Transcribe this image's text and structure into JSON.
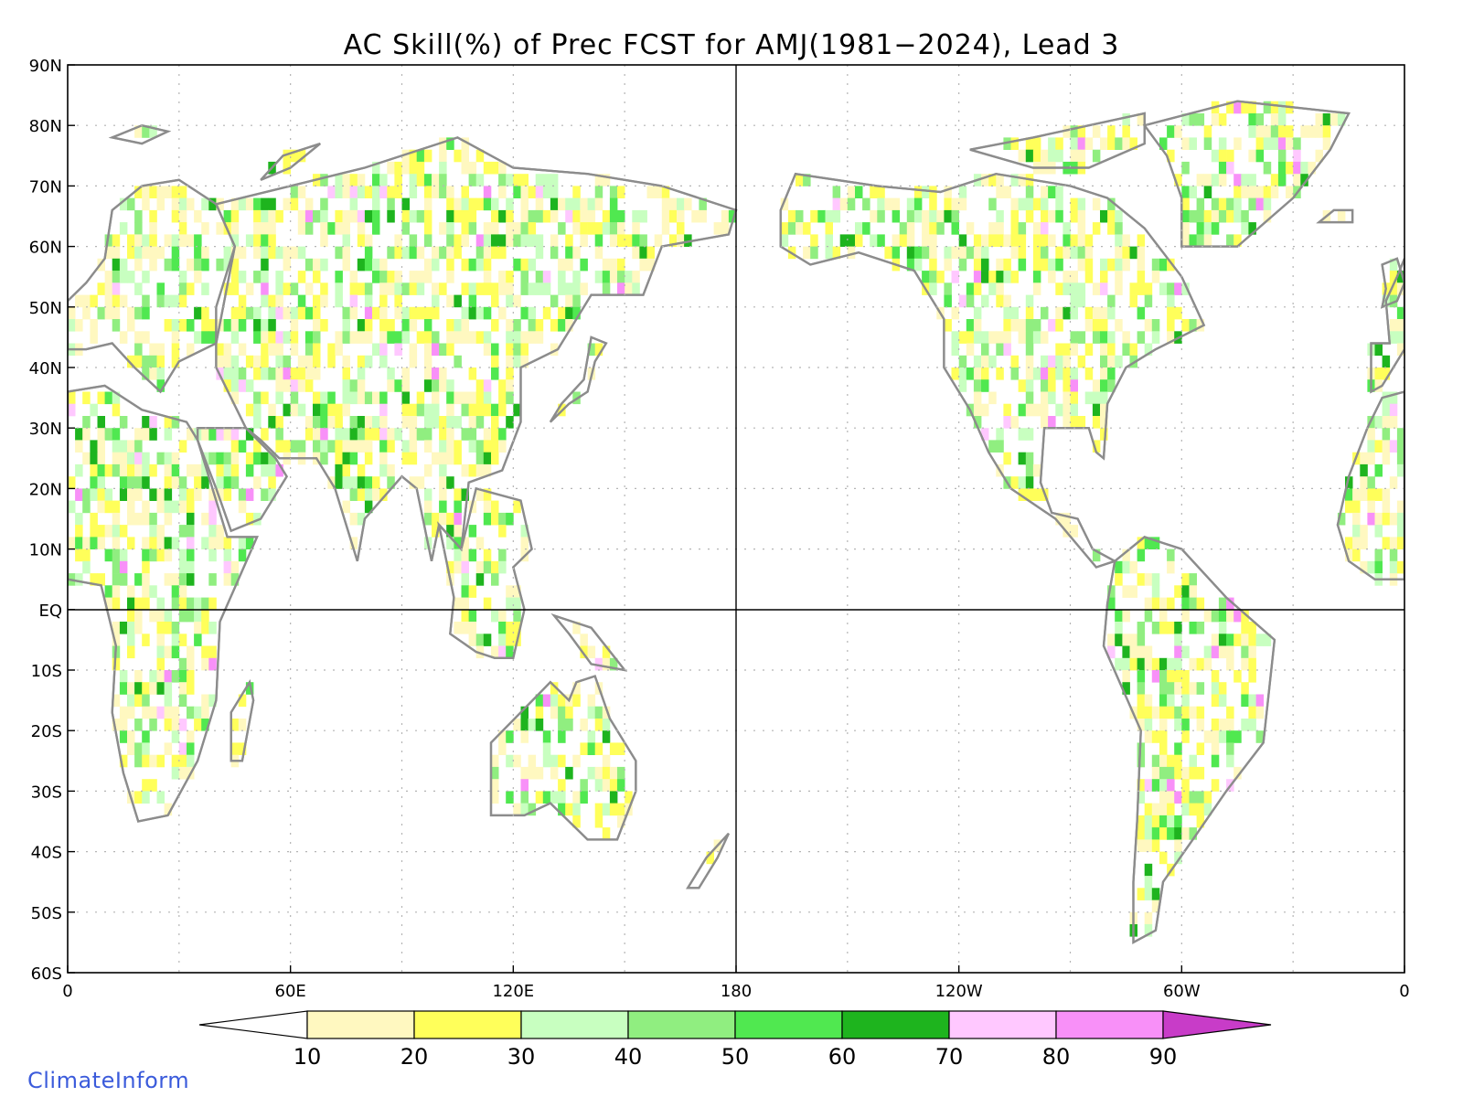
{
  "title": "AC Skill(%) of Prec FCST for AMJ(1981−2024), Lead 3",
  "lat_labels": [
    "90N",
    "80N",
    "70N",
    "60N",
    "50N",
    "40N",
    "30N",
    "20N",
    "10N",
    "EQ",
    "10S",
    "20S",
    "30S",
    "40S",
    "50S",
    "60S"
  ],
  "lon_labels": [
    "0",
    "60E",
    "120E",
    "180",
    "120W",
    "60W",
    "0"
  ],
  "colorbar": {
    "ticks": [
      "10",
      "20",
      "30",
      "40",
      "50",
      "60",
      "70",
      "80",
      "90"
    ],
    "colors": [
      "#ffffff",
      "#fff8c0",
      "#ffff5a",
      "#c8ffc0",
      "#90ee80",
      "#50e850",
      "#1eb41e",
      "#ffc8ff",
      "#f890f8",
      "#c83cc8"
    ]
  },
  "legend_colors": {
    "coast": "#8c8c8c",
    "border": "#000000",
    "grid": "#b4b4b4"
  },
  "brand": "ClimateInform"
}
